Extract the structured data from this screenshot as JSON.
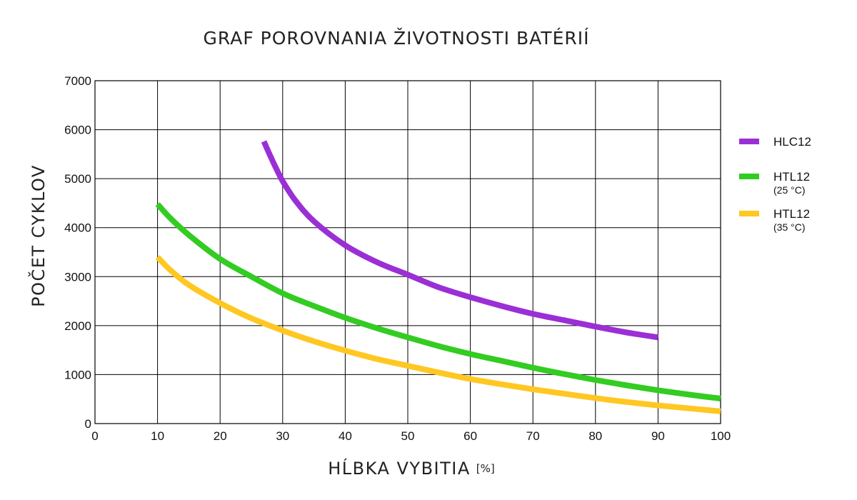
{
  "chart_data": {
    "type": "line",
    "title": "GRAF POROVNANIA ŽIVOTNOSTI BATÉRIÍ",
    "xlabel": "HĹBKA VYBITIA",
    "xlabel_unit": "[%]",
    "ylabel": "POČET CYKLOV",
    "xlim": [
      0,
      100
    ],
    "ylim": [
      0,
      7000
    ],
    "xticks": [
      0,
      10,
      20,
      30,
      40,
      50,
      60,
      70,
      80,
      90,
      100
    ],
    "yticks": [
      0,
      1000,
      2000,
      3000,
      4000,
      5000,
      6000,
      7000
    ],
    "grid": true,
    "legend_position": "right",
    "series": [
      {
        "name": "HLC12",
        "color": "#9b2fd6",
        "x": [
          27,
          28,
          29,
          30,
          32,
          35,
          40,
          45,
          50,
          55,
          60,
          65,
          70,
          75,
          80,
          85,
          90
        ],
        "y": [
          5760,
          5470,
          5200,
          4950,
          4560,
          4130,
          3640,
          3300,
          3040,
          2780,
          2580,
          2400,
          2240,
          2110,
          1980,
          1860,
          1760
        ]
      },
      {
        "name": "HTL12",
        "subtitle": "(25 °C)",
        "color": "#33cc22",
        "x": [
          10,
          12,
          15,
          20,
          25,
          30,
          35,
          40,
          45,
          50,
          55,
          60,
          65,
          70,
          75,
          80,
          85,
          90,
          95,
          100
        ],
        "y": [
          4480,
          4200,
          3850,
          3360,
          3000,
          2660,
          2400,
          2160,
          1950,
          1760,
          1580,
          1420,
          1280,
          1140,
          1010,
          890,
          780,
          680,
          590,
          510
        ]
      },
      {
        "name": "HTL12",
        "subtitle": "(35 °C)",
        "color": "#ffc722",
        "x": [
          10,
          12,
          15,
          20,
          25,
          30,
          35,
          40,
          45,
          50,
          55,
          60,
          65,
          70,
          75,
          80,
          85,
          90,
          95,
          100
        ],
        "y": [
          3400,
          3140,
          2830,
          2460,
          2150,
          1900,
          1680,
          1490,
          1320,
          1180,
          1040,
          910,
          800,
          700,
          610,
          520,
          440,
          370,
          310,
          250
        ]
      }
    ]
  }
}
